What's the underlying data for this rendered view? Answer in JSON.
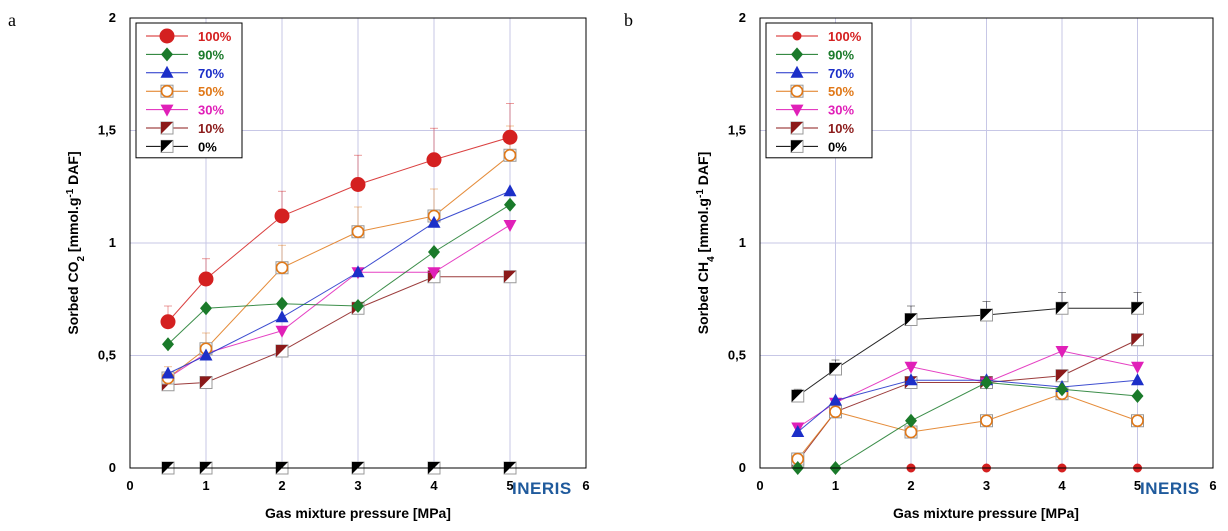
{
  "chart_data": [
    {
      "panel_label": "a",
      "type": "line",
      "xlabel": "Gas mixture pressure [MPa]",
      "ylabel": "Sorbed CO2 [mmol.g-1 DAF]",
      "ylabel_parts": [
        "Sorbed CO",
        "2",
        " [mmol.g",
        "-1",
        " DAF]"
      ],
      "logo": "INERIS",
      "xlim": [
        0,
        6
      ],
      "ylim": [
        0,
        2
      ],
      "xticks": [
        "0",
        "1",
        "2",
        "3",
        "4",
        "5",
        "6"
      ],
      "yticks": [
        "0",
        "0,5",
        "1",
        "1,5",
        "2"
      ],
      "grid": true,
      "legend_position": "top-left",
      "series": [
        {
          "name": "100%",
          "color": "#d42020",
          "marker": "circle",
          "x": [
            0.5,
            1,
            2,
            3,
            4,
            5
          ],
          "y": [
            0.65,
            0.84,
            1.12,
            1.26,
            1.37,
            1.47
          ],
          "err": [
            0.07,
            0.09,
            0.11,
            0.13,
            0.14,
            0.15
          ]
        },
        {
          "name": "90%",
          "color": "#1a7a2a",
          "marker": "diamond",
          "x": [
            0.5,
            1,
            2,
            3,
            4,
            5
          ],
          "y": [
            0.55,
            0.71,
            0.73,
            0.72,
            0.96,
            1.17
          ],
          "err": []
        },
        {
          "name": "70%",
          "color": "#1c2fc8",
          "marker": "triangle-up",
          "x": [
            0.5,
            1,
            2,
            3,
            4,
            5
          ],
          "y": [
            0.42,
            0.5,
            0.67,
            0.87,
            1.09,
            1.23
          ],
          "err": []
        },
        {
          "name": "50%",
          "color": "#e07818",
          "marker": "open-circle-square",
          "x": [
            0.5,
            1,
            2,
            3,
            4,
            5
          ],
          "y": [
            0.4,
            0.53,
            0.89,
            1.05,
            1.12,
            1.39
          ],
          "err": [
            0.05,
            0.07,
            0.1,
            0.11,
            0.12,
            0.13
          ]
        },
        {
          "name": "30%",
          "color": "#e020b8",
          "marker": "triangle-down",
          "x": [
            0.5,
            1,
            2,
            3,
            4,
            5
          ],
          "y": [
            0.4,
            0.51,
            0.61,
            0.87,
            0.87,
            1.08
          ],
          "err": []
        },
        {
          "name": "10%",
          "color": "#8b1a1a",
          "marker": "half-square",
          "x": [
            0.5,
            1,
            2,
            3,
            4,
            5
          ],
          "y": [
            0.37,
            0.38,
            0.52,
            0.71,
            0.85,
            0.85
          ],
          "err": []
        },
        {
          "name": "0%",
          "color": "#000000",
          "marker": "half-square",
          "x": [
            0.5,
            1,
            2,
            3,
            4,
            5
          ],
          "y": [
            0,
            0,
            0,
            0,
            0,
            0
          ],
          "err": []
        }
      ]
    },
    {
      "panel_label": "b",
      "type": "line",
      "xlabel": "Gas mixture pressure [MPa]",
      "ylabel": "Sorbed CH4 [mmol.g-1 DAF]",
      "ylabel_parts": [
        "Sorbed CH",
        "4",
        " [mmol.g",
        "-1",
        " DAF]"
      ],
      "logo": "INERIS",
      "xlim": [
        0,
        6
      ],
      "ylim": [
        0,
        2
      ],
      "xticks": [
        "0",
        "1",
        "2",
        "3",
        "4",
        "5",
        "6"
      ],
      "yticks": [
        "0",
        "0,5",
        "1",
        "1,5",
        "2"
      ],
      "grid": true,
      "legend_position": "top-left",
      "series": [
        {
          "name": "100%",
          "color": "#d42020",
          "marker": "small-circle",
          "x": [
            2,
            3,
            4,
            5
          ],
          "y": [
            0,
            0,
            0,
            0
          ],
          "err": []
        },
        {
          "name": "90%",
          "color": "#1a7a2a",
          "marker": "diamond",
          "x": [
            0.5,
            1,
            2,
            3,
            4,
            5
          ],
          "y": [
            0,
            0,
            0.21,
            0.38,
            0.35,
            0.32
          ],
          "err": []
        },
        {
          "name": "70%",
          "color": "#1c2fc8",
          "marker": "triangle-up",
          "x": [
            0.5,
            1,
            2,
            3,
            4,
            5
          ],
          "y": [
            0.16,
            0.3,
            0.39,
            0.39,
            0.36,
            0.39
          ],
          "err": []
        },
        {
          "name": "50%",
          "color": "#e07818",
          "marker": "open-circle-square",
          "x": [
            0.5,
            1,
            2,
            3,
            4,
            5
          ],
          "y": [
            0.04,
            0.25,
            0.16,
            0.21,
            0.33,
            0.21
          ],
          "err": []
        },
        {
          "name": "30%",
          "color": "#e020b8",
          "marker": "triangle-down",
          "x": [
            0.5,
            1,
            2,
            3,
            4,
            5
          ],
          "y": [
            0.18,
            0.29,
            0.45,
            0.38,
            0.52,
            0.45
          ],
          "err": []
        },
        {
          "name": "10%",
          "color": "#8b1a1a",
          "marker": "half-square",
          "x": [
            0.5,
            1,
            2,
            3,
            4,
            5
          ],
          "y": [
            0.03,
            0.25,
            0.38,
            0.38,
            0.41,
            0.57
          ],
          "err": []
        },
        {
          "name": "0%",
          "color": "#000000",
          "marker": "half-square",
          "x": [
            0.5,
            1,
            2,
            3,
            4,
            5
          ],
          "y": [
            0.32,
            0.44,
            0.66,
            0.68,
            0.71,
            0.71
          ],
          "err": [
            0.03,
            0.04,
            0.06,
            0.06,
            0.07,
            0.07
          ]
        }
      ]
    }
  ]
}
